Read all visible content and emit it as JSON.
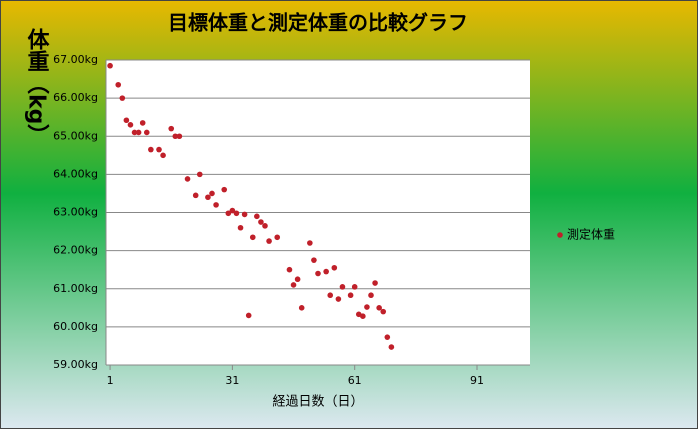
{
  "chart_data": {
    "type": "scatter",
    "title": "目標体重と測定体重の比較グラフ",
    "y_label": "体重（kg）",
    "x_label": "経過日数（日）",
    "xlim": [
      0,
      104
    ],
    "xticks": [
      1,
      31,
      61,
      91
    ],
    "ylim": [
      59,
      67
    ],
    "yticks": [
      {
        "value": 59,
        "label": "59.00kg"
      },
      {
        "value": 60,
        "label": "60.00kg"
      },
      {
        "value": 61,
        "label": "61.00kg"
      },
      {
        "value": 62,
        "label": "62.00kg"
      },
      {
        "value": 63,
        "label": "63.00kg"
      },
      {
        "value": 64,
        "label": "64.00kg"
      },
      {
        "value": 65,
        "label": "65.00kg"
      },
      {
        "value": 66,
        "label": "66.00kg"
      },
      {
        "value": 67,
        "label": "67.00kg"
      }
    ],
    "grid": true,
    "legend": "right",
    "series": [
      {
        "name": "測定体重",
        "color": "#c0202a",
        "x": [
          1,
          3,
          4,
          5,
          6,
          7,
          8,
          9,
          10,
          11,
          13,
          14,
          16,
          17,
          18,
          20,
          22,
          23,
          25,
          26,
          27,
          29,
          30,
          31,
          32,
          33,
          34,
          35,
          36,
          37,
          38,
          39,
          40,
          42,
          45,
          46,
          47,
          48,
          50,
          51,
          52,
          54,
          55,
          56,
          57,
          58,
          60,
          61,
          62,
          63,
          64,
          65,
          66,
          67,
          68,
          69,
          70
        ],
        "values": [
          66.85,
          66.35,
          66.0,
          65.42,
          65.3,
          65.1,
          65.1,
          65.35,
          65.1,
          64.65,
          64.65,
          64.5,
          65.2,
          65.0,
          65.0,
          63.88,
          63.45,
          64.0,
          63.4,
          63.5,
          63.2,
          63.6,
          62.98,
          63.05,
          62.98,
          62.6,
          62.95,
          60.3,
          62.35,
          62.9,
          62.75,
          62.65,
          62.25,
          62.35,
          61.5,
          61.1,
          61.25,
          60.5,
          62.2,
          61.75,
          61.4,
          61.45,
          60.83,
          61.55,
          60.73,
          61.05,
          60.83,
          61.05,
          60.33,
          60.28,
          60.52,
          60.83,
          61.15,
          60.5,
          60.4,
          59.73,
          59.47
        ]
      }
    ]
  }
}
